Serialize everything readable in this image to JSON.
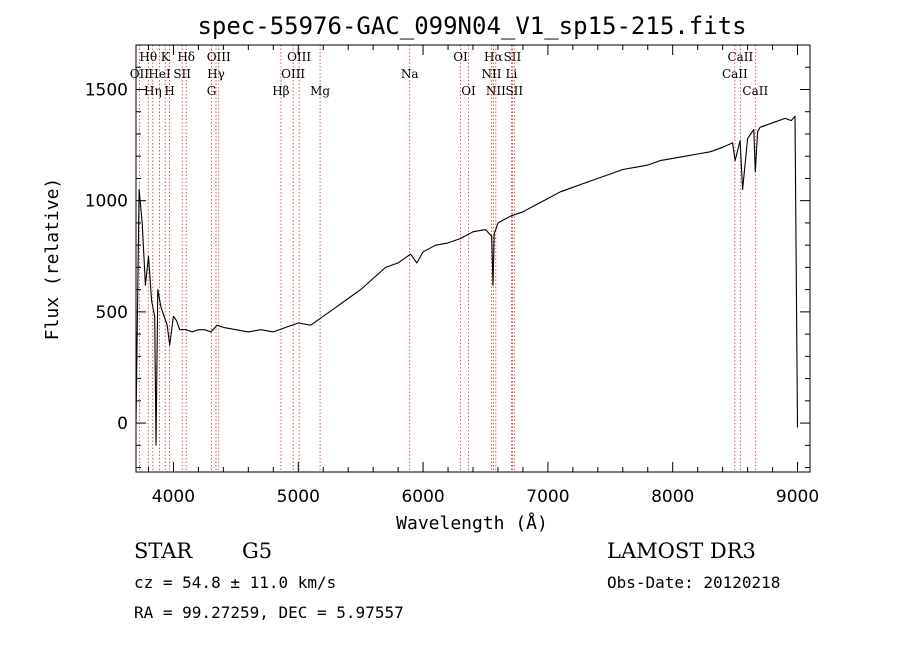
{
  "chart_data": {
    "type": "line",
    "title": "spec-55976-GAC_099N04_V1_sp15-215.fits",
    "xlabel": "Wavelength (Å)",
    "ylabel": "Flux (relative)",
    "xlim": [
      3700,
      9100
    ],
    "ylim": [
      -220,
      1700
    ],
    "x_ticks": [
      4000,
      5000,
      6000,
      7000,
      8000,
      9000
    ],
    "x_tick_labels": [
      "4000",
      "5000",
      "6000",
      "7000",
      "8000",
      "9000"
    ],
    "y_ticks": [
      0,
      500,
      1000,
      1500
    ],
    "y_tick_labels": [
      "0",
      "500",
      "1000",
      "1500"
    ],
    "grid": false,
    "series": [
      {
        "name": "spectrum",
        "x": [
          3700,
          3725,
          3750,
          3775,
          3800,
          3825,
          3850,
          3860,
          3875,
          3900,
          3925,
          3950,
          3970,
          4000,
          4025,
          4050,
          4100,
          4150,
          4200,
          4250,
          4300,
          4350,
          4400,
          4500,
          4600,
          4700,
          4800,
          4900,
          5000,
          5100,
          5200,
          5300,
          5400,
          5500,
          5600,
          5700,
          5800,
          5900,
          5950,
          6000,
          6100,
          6200,
          6300,
          6400,
          6500,
          6550,
          6560,
          6570,
          6600,
          6700,
          6800,
          6900,
          7000,
          7100,
          7200,
          7300,
          7400,
          7500,
          7600,
          7700,
          7800,
          7900,
          8000,
          8100,
          8200,
          8300,
          8400,
          8480,
          8500,
          8540,
          8560,
          8600,
          8650,
          8662,
          8680,
          8700,
          8800,
          8900,
          8950,
          8980,
          9000
        ],
        "values": [
          0,
          1050,
          900,
          620,
          750,
          550,
          480,
          -100,
          600,
          520,
          480,
          440,
          350,
          480,
          460,
          420,
          420,
          410,
          420,
          420,
          410,
          440,
          430,
          420,
          410,
          420,
          410,
          430,
          450,
          440,
          480,
          520,
          560,
          600,
          650,
          700,
          720,
          760,
          720,
          770,
          800,
          810,
          830,
          860,
          870,
          840,
          620,
          850,
          900,
          930,
          950,
          980,
          1010,
          1040,
          1060,
          1080,
          1100,
          1120,
          1140,
          1150,
          1160,
          1180,
          1190,
          1200,
          1210,
          1220,
          1240,
          1260,
          1180,
          1270,
          1050,
          1280,
          1320,
          1130,
          1310,
          1330,
          1350,
          1370,
          1360,
          1380,
          -20
        ]
      }
    ],
    "line_markers": [
      {
        "label": "Hθ",
        "x": 3798,
        "row": 1
      },
      {
        "label": "OII",
        "x": 3727,
        "row": 2
      },
      {
        "label": "Hη",
        "x": 3835,
        "row": 3
      },
      {
        "label": "K",
        "x": 3934,
        "row": 1
      },
      {
        "label": "HeI",
        "x": 3889,
        "row": 2
      },
      {
        "label": "H",
        "x": 3969,
        "row": 3
      },
      {
        "label": "SII",
        "x": 4070,
        "row": 2
      },
      {
        "label": "Hδ",
        "x": 4102,
        "row": 1
      },
      {
        "label": "OIII",
        "x": 4363,
        "row": 1
      },
      {
        "label": "Hγ",
        "x": 4341,
        "row": 2
      },
      {
        "label": "G",
        "x": 4305,
        "row": 3
      },
      {
        "label": "Hβ",
        "x": 4861,
        "row": 3
      },
      {
        "label": "OIII",
        "x": 5007,
        "row": 1
      },
      {
        "label": "OIII",
        "x": 4959,
        "row": 2
      },
      {
        "label": "Mg",
        "x": 5175,
        "row": 3
      },
      {
        "label": "Na",
        "x": 5893,
        "row": 2
      },
      {
        "label": "OI",
        "x": 6300,
        "row": 1
      },
      {
        "label": "OI",
        "x": 6364,
        "row": 3
      },
      {
        "label": "Hα",
        "x": 6563,
        "row": 1
      },
      {
        "label": "NII",
        "x": 6548,
        "row": 2
      },
      {
        "label": "NII",
        "x": 6583,
        "row": 3
      },
      {
        "label": "SII",
        "x": 6716,
        "row": 1
      },
      {
        "label": "Li",
        "x": 6708,
        "row": 2
      },
      {
        "label": "SII",
        "x": 6731,
        "row": 3
      },
      {
        "label": "CaII",
        "x": 8542,
        "row": 1
      },
      {
        "label": "CaII",
        "x": 8498,
        "row": 2
      },
      {
        "label": "CaII",
        "x": 8662,
        "row": 3
      }
    ]
  },
  "info": {
    "object_class": "STAR",
    "subclass": "G5",
    "redshift_line": "cz = 54.8 ± 11.0 km/s",
    "coords_line": "RA =  99.27259, DEC =   5.97557",
    "survey": "LAMOST DR3",
    "obs_date_line": "Obs-Date: 20120218"
  }
}
